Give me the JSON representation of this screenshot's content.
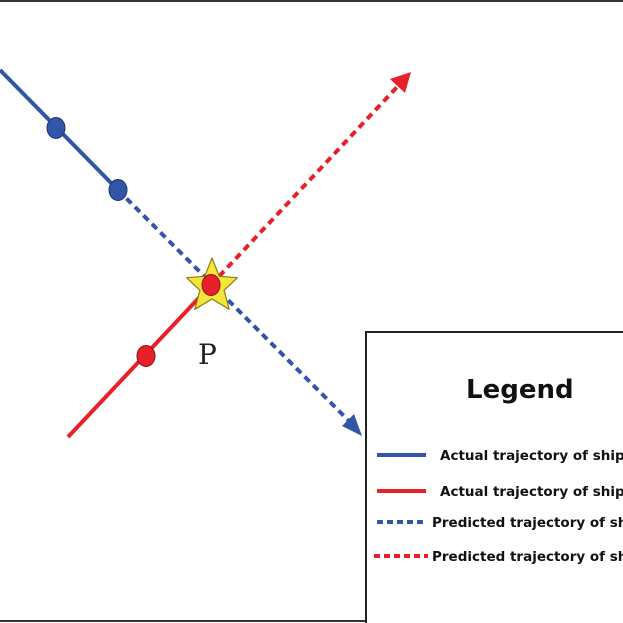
{
  "colors": {
    "ship_a": "#3355a8",
    "ship_b": "#e8202a",
    "star_fill": "#f5e63a",
    "star_stroke": "#8a7d10",
    "frame": "#333333"
  },
  "point_label": "P",
  "legend": {
    "title": "Legend",
    "items": [
      {
        "label": "Actual trajectory of ship A",
        "color": "#3355a8",
        "style": "solid"
      },
      {
        "label": "Actual trajectory of ship B",
        "color": "#e8202a",
        "style": "solid"
      },
      {
        "label": "Predicted trajectory of ship A",
        "color": "#3355a8",
        "style": "dashed"
      },
      {
        "label": "Predicted trajectory of ship B",
        "color": "#e8202a",
        "style": "dashed"
      }
    ]
  }
}
